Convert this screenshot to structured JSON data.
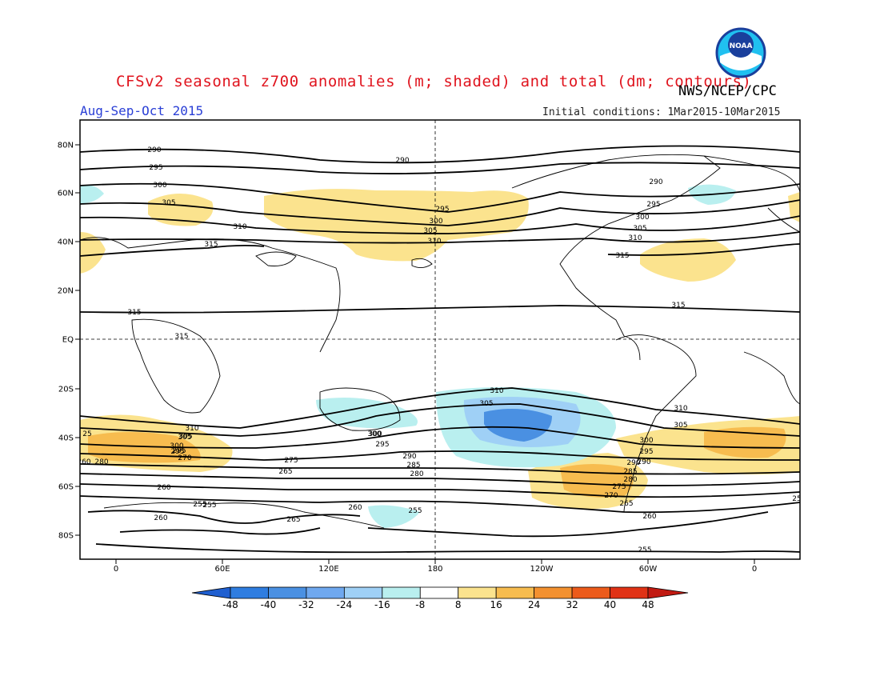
{
  "header": {
    "title": "CFSv2 seasonal z700 anomalies (m; shaded) and total (dm; contours)",
    "agency": "NWS/NCEP/CPC",
    "season": "Aug-Sep-Oct 2015",
    "initial_conditions": "Initial conditions: 1Mar2015-10Mar2015"
  },
  "logo": {
    "text": "NOAA"
  },
  "axes": {
    "lat_labels": [
      "80N",
      "60N",
      "40N",
      "20N",
      "EQ",
      "20S",
      "40S",
      "60S",
      "80S"
    ],
    "lon_labels": [
      "0",
      "60E",
      "120E",
      "180",
      "120W",
      "60W",
      "0"
    ]
  },
  "contour_labels": [
    "290",
    "290",
    "295",
    "300",
    "305",
    "310",
    "315",
    "315",
    "315",
    "295",
    "300",
    "305",
    "310",
    "290",
    "295",
    "300",
    "305",
    "310",
    "315",
    "315",
    "310",
    "305",
    "310",
    "305",
    "300",
    "295",
    "290",
    "310",
    "305",
    "300",
    "295",
    "290",
    "285",
    "280",
    "275",
    "270",
    "265",
    "260",
    "255",
    "260",
    "265",
    "260",
    "255",
    "305",
    "300",
    "295",
    "290",
    "285",
    "280",
    "275",
    "270",
    "265",
    "260",
    "255",
    "300",
    "295",
    "260",
    "280",
    "255",
    "25",
    "25"
  ],
  "colorbar": {
    "labels": [
      "-48",
      "-40",
      "-32",
      "-24",
      "-16",
      "-8",
      "8",
      "16",
      "24",
      "32",
      "40",
      "48"
    ],
    "colors": [
      "#1f5fd0",
      "#2f7de0",
      "#4a90e2",
      "#6fa8ef",
      "#9fd0f6",
      "#b9efef",
      "#ffffff",
      "#fbe38e",
      "#f7bc4f",
      "#f39130",
      "#ec5b1b",
      "#e03215",
      "#c11a12"
    ]
  }
}
